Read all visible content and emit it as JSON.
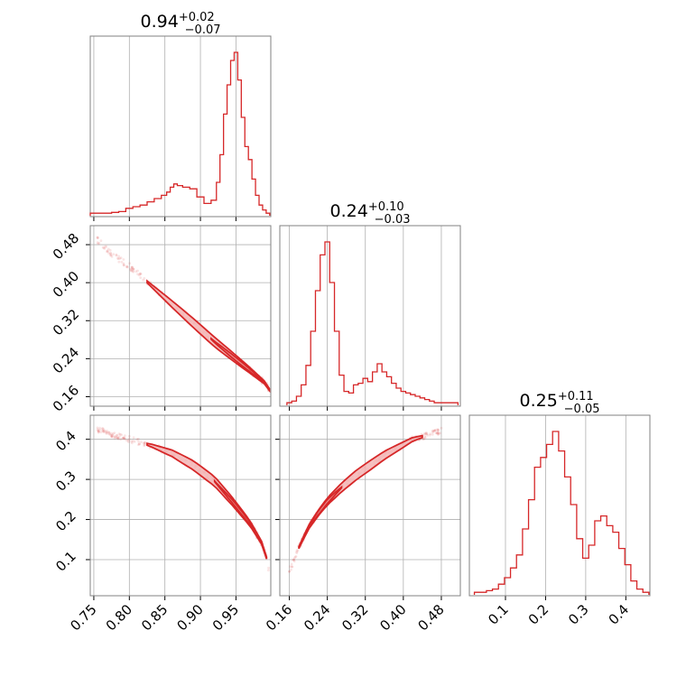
{
  "colors": {
    "series": "#d62728",
    "fill": "#f3b6b6",
    "grid": "#b0b0b0",
    "frame": "#808080"
  },
  "chart_data": {
    "type": "corner",
    "grid": true,
    "parameters": [
      {
        "title": {
          "median": "0.94",
          "plus": "+0.02",
          "minus": "−0.07"
        },
        "range": [
          0.745,
          0.999
        ],
        "ticks": [
          0.75,
          0.8,
          0.85,
          0.9,
          0.95
        ],
        "tick_labels": [
          "0.75",
          "0.80",
          "0.85",
          "0.90",
          "0.95"
        ]
      },
      {
        "title": {
          "median": "0.24",
          "plus": "+0.10",
          "minus": "−0.03"
        },
        "range": [
          0.14,
          0.52
        ],
        "ticks": [
          0.16,
          0.24,
          0.32,
          0.4,
          0.48
        ],
        "tick_labels": [
          "0.16",
          "0.24",
          "0.32",
          "0.40",
          "0.48"
        ]
      },
      {
        "title": {
          "median": "0.25",
          "plus": "+0.11",
          "minus": "−0.05"
        },
        "range": [
          0.01,
          0.46
        ],
        "ticks": [
          0.1,
          0.2,
          0.3,
          0.4
        ],
        "tick_labels": [
          "0.1",
          "0.2",
          "0.3",
          "0.4"
        ]
      }
    ],
    "histograms": [
      {
        "param": 0,
        "x": [
          0.75,
          0.76,
          0.77,
          0.78,
          0.79,
          0.8,
          0.81,
          0.82,
          0.83,
          0.84,
          0.85,
          0.855,
          0.86,
          0.865,
          0.87,
          0.88,
          0.89,
          0.9,
          0.91,
          0.92,
          0.925,
          0.93,
          0.935,
          0.94,
          0.945,
          0.95,
          0.955,
          0.96,
          0.965,
          0.97,
          0.975,
          0.98,
          0.985,
          0.99,
          0.995
        ],
        "y": [
          0.01,
          0.01,
          0.01,
          0.015,
          0.02,
          0.04,
          0.05,
          0.06,
          0.08,
          0.1,
          0.12,
          0.14,
          0.17,
          0.19,
          0.18,
          0.17,
          0.16,
          0.11,
          0.07,
          0.09,
          0.2,
          0.37,
          0.62,
          0.8,
          0.95,
          1.0,
          0.83,
          0.6,
          0.42,
          0.34,
          0.22,
          0.12,
          0.06,
          0.03,
          0.01
        ]
      },
      {
        "param": 1,
        "x": [
          0.16,
          0.17,
          0.18,
          0.19,
          0.2,
          0.21,
          0.22,
          0.23,
          0.24,
          0.25,
          0.26,
          0.27,
          0.28,
          0.29,
          0.3,
          0.31,
          0.32,
          0.33,
          0.34,
          0.35,
          0.36,
          0.37,
          0.38,
          0.39,
          0.4,
          0.41,
          0.42,
          0.43,
          0.44,
          0.45,
          0.46,
          0.47,
          0.48,
          0.49,
          0.5,
          0.51
        ],
        "y": [
          0.01,
          0.02,
          0.05,
          0.12,
          0.24,
          0.45,
          0.7,
          0.92,
          1.0,
          0.75,
          0.45,
          0.18,
          0.08,
          0.07,
          0.12,
          0.13,
          0.16,
          0.14,
          0.2,
          0.25,
          0.2,
          0.17,
          0.13,
          0.1,
          0.08,
          0.07,
          0.06,
          0.05,
          0.04,
          0.03,
          0.02,
          0.01,
          0.01,
          0.01,
          0.01,
          0.01
        ]
      },
      {
        "param": 2,
        "x": [
          0.03,
          0.045,
          0.06,
          0.075,
          0.09,
          0.105,
          0.12,
          0.135,
          0.15,
          0.165,
          0.18,
          0.195,
          0.21,
          0.225,
          0.24,
          0.255,
          0.27,
          0.285,
          0.3,
          0.315,
          0.33,
          0.345,
          0.36,
          0.375,
          0.39,
          0.405,
          0.42,
          0.435,
          0.45
        ],
        "y": [
          0.01,
          0.01,
          0.02,
          0.03,
          0.06,
          0.1,
          0.16,
          0.24,
          0.4,
          0.58,
          0.78,
          0.84,
          0.92,
          1.0,
          0.88,
          0.72,
          0.55,
          0.34,
          0.22,
          0.3,
          0.45,
          0.48,
          0.42,
          0.38,
          0.28,
          0.18,
          0.08,
          0.03,
          0.01
        ]
      }
    ],
    "pairs": [
      {
        "x_param": 0,
        "y_param": 1,
        "ridge": {
          "x": [
            0.755,
            0.78,
            0.8,
            0.83,
            0.86,
            0.89,
            0.92,
            0.945,
            0.97,
            0.99,
            0.997
          ],
          "y": [
            0.49,
            0.455,
            0.435,
            0.395,
            0.355,
            0.315,
            0.275,
            0.245,
            0.215,
            0.19,
            0.175
          ]
        },
        "contours": [
          {
            "level": "outer",
            "from": 0.825,
            "to": 0.997,
            "halfwidth": 0.012
          },
          {
            "level": "inner",
            "from": 0.915,
            "to": 0.99,
            "halfwidth": 0.006
          }
        ]
      },
      {
        "x_param": 0,
        "y_param": 2,
        "ridge": {
          "x": [
            0.755,
            0.78,
            0.8,
            0.83,
            0.86,
            0.89,
            0.92,
            0.945,
            0.97,
            0.99,
            0.997
          ],
          "y": [
            0.425,
            0.41,
            0.4,
            0.385,
            0.365,
            0.335,
            0.295,
            0.245,
            0.19,
            0.13,
            0.07
          ]
        },
        "contours": [
          {
            "level": "outer",
            "from": 0.825,
            "to": 0.993,
            "halfwidth": 0.012
          },
          {
            "level": "inner",
            "from": 0.92,
            "to": 0.985,
            "halfwidth": 0.006
          }
        ]
      },
      {
        "x_param": 1,
        "y_param": 2,
        "ridge": {
          "x": [
            0.16,
            0.18,
            0.2,
            0.22,
            0.24,
            0.27,
            0.3,
            0.33,
            0.36,
            0.39,
            0.42,
            0.45,
            0.48
          ],
          "y": [
            0.07,
            0.13,
            0.18,
            0.215,
            0.245,
            0.28,
            0.31,
            0.335,
            0.36,
            0.38,
            0.4,
            0.41,
            0.42
          ]
        },
        "contours": [
          {
            "level": "outer",
            "from": 0.18,
            "to": 0.44,
            "halfwidth": 0.012
          },
          {
            "level": "inner",
            "from": 0.195,
            "to": 0.27,
            "halfwidth": 0.007
          }
        ]
      }
    ]
  }
}
